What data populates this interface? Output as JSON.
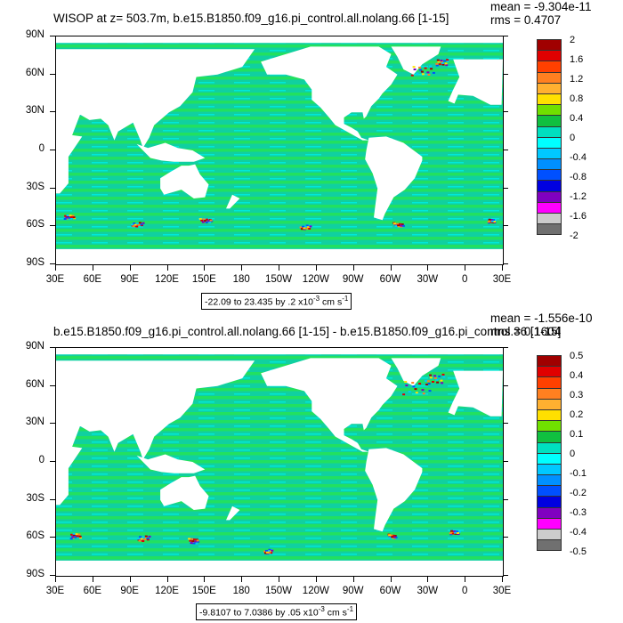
{
  "chart_data": [
    {
      "type": "heatmap",
      "title": "WISOP at z= 503.7m, b.e15.B1850.f09_g16.pi_control.all.nolang.66 [1-15]",
      "stats": {
        "mean": "mean = -9.304e-11",
        "rms": "rms = 0.4707"
      },
      "range_text": "-22.09 to 23.435 by .2 x10",
      "range_exp": "-3",
      "range_unit": " cm s",
      "range_unit_exp": "-1",
      "y_ticks": [
        "90N",
        "60N",
        "30N",
        "0",
        "30S",
        "60S",
        "90S"
      ],
      "x_ticks": [
        "30E",
        "60E",
        "90E",
        "120E",
        "150E",
        "180",
        "150W",
        "120W",
        "90W",
        "60W",
        "30W",
        "0",
        "30E"
      ],
      "colorbar": {
        "labels": [
          "2",
          "1.6",
          "1.2",
          "0.8",
          "0.4",
          "0",
          "-0.4",
          "-0.8",
          "-1.2",
          "-1.6",
          "-2"
        ],
        "colors": [
          "#a00000",
          "#e00000",
          "#ff4000",
          "#ff8020",
          "#ffb030",
          "#ffe000",
          "#70e000",
          "#10c040",
          "#00e0c0",
          "#00ffff",
          "#00c8ff",
          "#0090ff",
          "#0050ff",
          "#0000e0",
          "#8000c0",
          "#ff00ff",
          "#cccccc",
          "#707070"
        ]
      }
    },
    {
      "type": "heatmap",
      "title": "b.e15.B1850.f09_g16.pi_control.all.nolang.66 [1-15] - b.e15.B1850.f09_g16.pi_control.36 [1-15]",
      "stats": {
        "mean": "mean = -1.556e-10",
        "rms": "rms = 0.1604"
      },
      "range_text": "-9.8107 to 7.0386 by .05 x10",
      "range_exp": "-3",
      "range_unit": " cm s",
      "range_unit_exp": "-1",
      "y_ticks": [
        "90N",
        "60N",
        "30N",
        "0",
        "30S",
        "60S",
        "90S"
      ],
      "x_ticks": [
        "30E",
        "60E",
        "90E",
        "120E",
        "150E",
        "180",
        "150W",
        "120W",
        "90W",
        "60W",
        "30W",
        "0",
        "30E"
      ],
      "colorbar": {
        "labels": [
          "0.5",
          "0.4",
          "0.3",
          "0.2",
          "0.1",
          "0",
          "-0.1",
          "-0.2",
          "-0.3",
          "-0.4",
          "-0.5"
        ],
        "colors": [
          "#a00000",
          "#e00000",
          "#ff4000",
          "#ff8020",
          "#ffb030",
          "#ffe000",
          "#70e000",
          "#10c040",
          "#00e0c0",
          "#00ffff",
          "#00c8ff",
          "#0090ff",
          "#0050ff",
          "#0000e0",
          "#8000c0",
          "#ff00ff",
          "#cccccc",
          "#707070"
        ]
      }
    }
  ]
}
